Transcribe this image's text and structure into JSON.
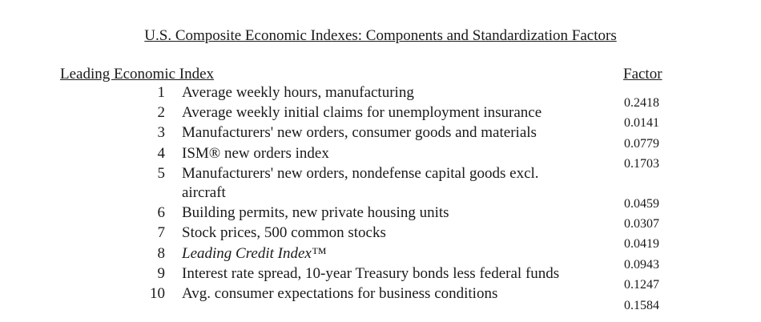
{
  "title": "U.S. Composite Economic Indexes:  Components and Standardization Factors",
  "section_header": "Leading Economic Index",
  "factor_header": "Factor",
  "components": [
    {
      "num": "1",
      "label": "Average weekly hours, manufacturing",
      "factor": "0.2418"
    },
    {
      "num": "2",
      "label": "Average weekly initial claims for unemployment insurance",
      "factor": "0.0141"
    },
    {
      "num": "3",
      "label": "Manufacturers' new orders, consumer goods and materials",
      "factor": "0.0779"
    },
    {
      "num": "4",
      "label": "ISM® new orders index",
      "factor": "0.1703"
    },
    {
      "num": "5",
      "label": "Manufacturers' new orders, nondefense capital goods excl.",
      "label2": "aircraft",
      "factor": "0.0459"
    },
    {
      "num": "6",
      "label": "Building permits, new private housing units",
      "factor": "0.0307"
    },
    {
      "num": "7",
      "label": "Stock prices, 500 common stocks",
      "factor": "0.0419"
    },
    {
      "num": "8",
      "label": "Leading Credit Index™",
      "factor": "0.0943"
    },
    {
      "num": "9",
      "label": "Interest rate spread, 10-year Treasury bonds less federal funds",
      "factor": "0.1247"
    },
    {
      "num": "10",
      "label": "Avg. consumer expectations for business conditions",
      "factor": "0.1584"
    }
  ]
}
